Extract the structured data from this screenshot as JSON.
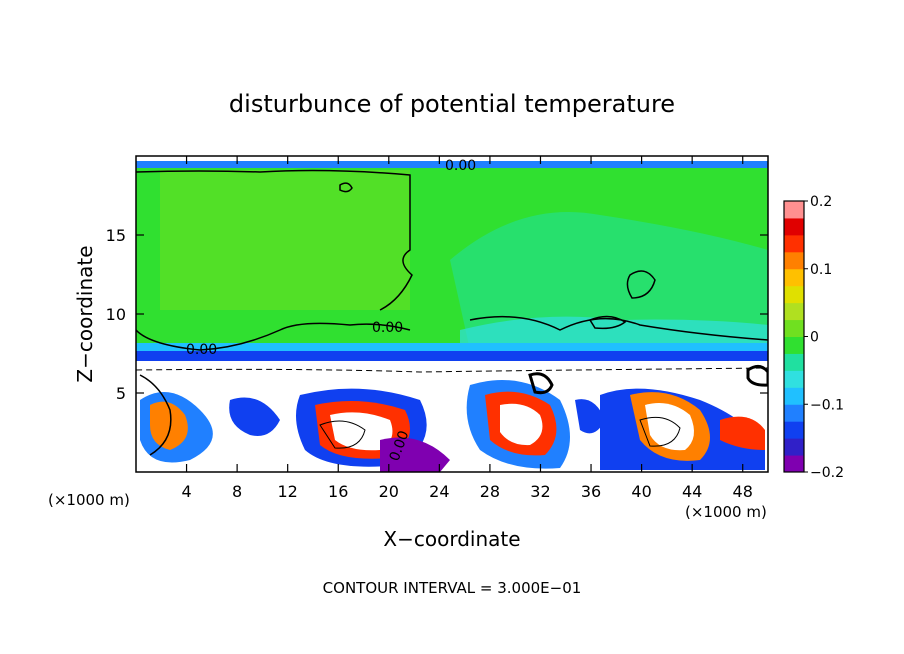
{
  "chart_data": {
    "type": "heatmap",
    "title": "disturbunce of potential temperature",
    "xlabel": "X−coordinate",
    "ylabel": "Z−coordinate",
    "x_unit": "(×1000 m)",
    "x_unit_right": "(×1000 m)",
    "footer": "CONTOUR INTERVAL = 3.000E−01",
    "xlim": [
      0,
      50
    ],
    "ylim": [
      0,
      20
    ],
    "x_ticks": [
      4,
      8,
      12,
      16,
      20,
      24,
      28,
      32,
      36,
      40,
      44,
      48
    ],
    "y_ticks": [
      5,
      10,
      15
    ],
    "colorbar": {
      "ticks": [
        0.2,
        0.1,
        0,
        -0.1,
        -0.2
      ],
      "tick_labels": [
        "0.2",
        "0.1",
        "0",
        "−0.1",
        "−0.2"
      ],
      "range": [
        -0.2,
        0.2
      ],
      "colors": [
        "#7f00b0",
        "#3020c8",
        "#1040f0",
        "#2080ff",
        "#20c0ff",
        "#30e0e0",
        "#20e0a0",
        "#30e030",
        "#70e020",
        "#b0e020",
        "#e0e000",
        "#ffc000",
        "#ff8000",
        "#ff3000",
        "#e00000",
        "#ff9090"
      ]
    },
    "contour_labels": [
      {
        "text": "0.00",
        "x": 3.5,
        "z": 7.9
      },
      {
        "text": "0.00",
        "x": 19.5,
        "z": 9.0
      },
      {
        "text": "0.00",
        "x": 25.5,
        "z": 19.3
      },
      {
        "text": "0.00",
        "x": 21.5,
        "z": 1.5
      }
    ],
    "regions": {
      "upper_layer_value": 0.02,
      "upper_right_value": -0.04,
      "lower_layer_value": -0.2,
      "boundary_z": 7.0
    }
  }
}
